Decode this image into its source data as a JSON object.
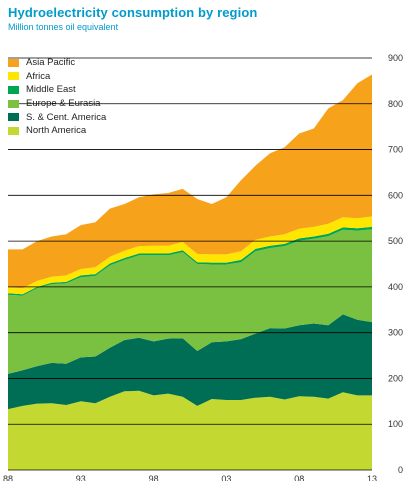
{
  "chart_data": {
    "type": "area",
    "stacked": true,
    "title": "Hydroelectricity consumption by region",
    "subtitle": "Million tonnes oil equivalent",
    "x": [
      1988,
      1989,
      1990,
      1991,
      1992,
      1993,
      1994,
      1995,
      1996,
      1997,
      1998,
      1999,
      2000,
      2001,
      2002,
      2003,
      2004,
      2005,
      2006,
      2007,
      2008,
      2009,
      2010,
      2011,
      2012,
      2013
    ],
    "x_tick_labels": [
      {
        "value": 1988,
        "label": "88"
      },
      {
        "value": 1993,
        "label": "93"
      },
      {
        "value": 1998,
        "label": "98"
      },
      {
        "value": 2003,
        "label": "03"
      },
      {
        "value": 2008,
        "label": "08"
      },
      {
        "value": 2013,
        "label": "13"
      }
    ],
    "y_ticks": [
      0,
      100,
      200,
      300,
      400,
      500,
      600,
      700,
      800,
      900
    ],
    "ylim": [
      0,
      900
    ],
    "y_axis_position": "right",
    "legend_position": "top-left",
    "series": [
      {
        "name": "North America",
        "color": "#c3d932",
        "values": [
          133,
          140,
          145,
          146,
          142,
          150,
          146,
          160,
          172,
          173,
          163,
          167,
          160,
          140,
          155,
          153,
          153,
          158,
          160,
          154,
          161,
          160,
          156,
          170,
          163,
          163
        ]
      },
      {
        "name": "S. & Cent. America",
        "color": "#006e54",
        "values": [
          77,
          78,
          82,
          88,
          90,
          96,
          102,
          107,
          112,
          116,
          118,
          120,
          128,
          120,
          124,
          128,
          133,
          140,
          150,
          155,
          155,
          160,
          160,
          170,
          165,
          160
        ]
      },
      {
        "name": "Europe & Eurasia",
        "color": "#7ac142",
        "values": [
          173,
          163,
          170,
          172,
          176,
          175,
          176,
          180,
          175,
          180,
          188,
          182,
          188,
          190,
          170,
          168,
          168,
          180,
          175,
          180,
          185,
          185,
          195,
          185,
          195,
          203
        ]
      },
      {
        "name": "Middle East",
        "color": "#00a651",
        "values": [
          3,
          3,
          3,
          3,
          3,
          4,
          4,
          4,
          4,
          4,
          4,
          4,
          4,
          4,
          4,
          4,
          5,
          5,
          5,
          5,
          5,
          5,
          5,
          5,
          5,
          5
        ]
      },
      {
        "name": "Africa",
        "color": "#ffe600",
        "values": [
          13,
          13,
          13,
          13,
          14,
          14,
          15,
          15,
          16,
          16,
          17,
          17,
          18,
          18,
          18,
          18,
          19,
          20,
          20,
          21,
          21,
          21,
          22,
          22,
          22,
          23
        ]
      },
      {
        "name": "Asia Pacific",
        "color": "#f7a21b",
        "values": [
          83,
          85,
          87,
          88,
          90,
          96,
          98,
          105,
          102,
          107,
          112,
          115,
          116,
          120,
          110,
          125,
          155,
          162,
          182,
          190,
          208,
          215,
          252,
          256,
          295,
          310
        ]
      }
    ]
  }
}
